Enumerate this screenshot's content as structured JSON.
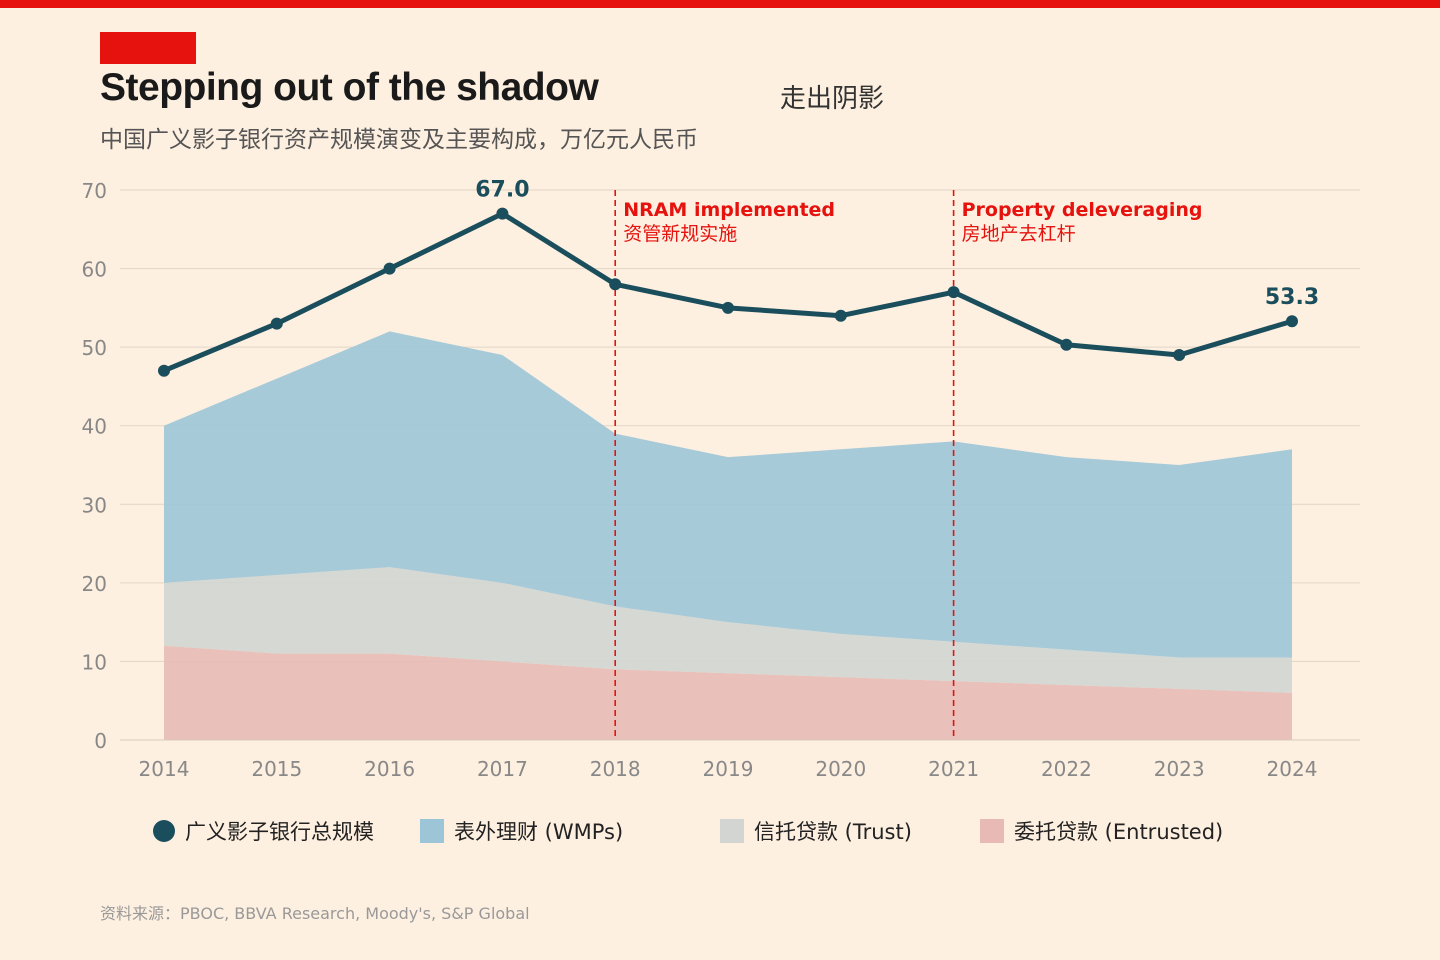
{
  "header": {
    "title": "Stepping out of the shadow",
    "title_cn": "走出阴影",
    "subtitle": "中国广义影子银行资产规模演变及主要构成，万亿元人民币"
  },
  "colors": {
    "accent": "#e5120e",
    "total": "#1b4e5c",
    "wmp": "#9dc5d8",
    "trust": "#d2d5d2",
    "entrusted": "#e7bab6",
    "background": "#fef0e0"
  },
  "chart_data": {
    "type": "area",
    "stacked": true,
    "title": "Stepping out of the shadow",
    "x": [
      "2014",
      "2015",
      "2016",
      "2017",
      "2018",
      "2019",
      "2020",
      "2021",
      "2022",
      "2023",
      "2024"
    ],
    "ylim": [
      0,
      70
    ],
    "yticks": [
      "0",
      "10",
      "20",
      "30",
      "40",
      "50",
      "60",
      "70"
    ],
    "grid": true,
    "series": [
      {
        "name": "委托贷款 (Entrusted)",
        "key": "entrusted",
        "values": [
          12,
          11,
          11,
          10,
          9,
          8.5,
          8,
          7.5,
          7,
          6.5,
          6
        ]
      },
      {
        "name": "信托贷款 (Trust)",
        "key": "trust",
        "values": [
          8,
          10,
          11,
          10,
          8,
          6.5,
          5.5,
          5,
          4.5,
          4,
          4.5
        ]
      },
      {
        "name": "表外理财 (WMPs)",
        "key": "wmp",
        "values": [
          20,
          25,
          30,
          29,
          22,
          21,
          23.5,
          25.5,
          24.5,
          24.5,
          26.5
        ]
      }
    ],
    "line": {
      "name": "广义影子银行总规模",
      "values": [
        47,
        53,
        60,
        67,
        58,
        55,
        54,
        57,
        50.3,
        49,
        53.3
      ]
    },
    "data_labels": [
      {
        "index": 3,
        "text": "67.0"
      },
      {
        "index": 10,
        "text": "53.3"
      }
    ],
    "annotations": [
      {
        "index": 4,
        "text_en": "NRAM implemented",
        "text_cn": "资管新规实施"
      },
      {
        "index": 7,
        "text_en": "Property deleveraging",
        "text_cn": "房地产去杠杆"
      }
    ],
    "legend_position": "bottom"
  },
  "footer": {
    "source": "资料来源：PBOC, BBVA Research, Moody's, S&P Global"
  }
}
